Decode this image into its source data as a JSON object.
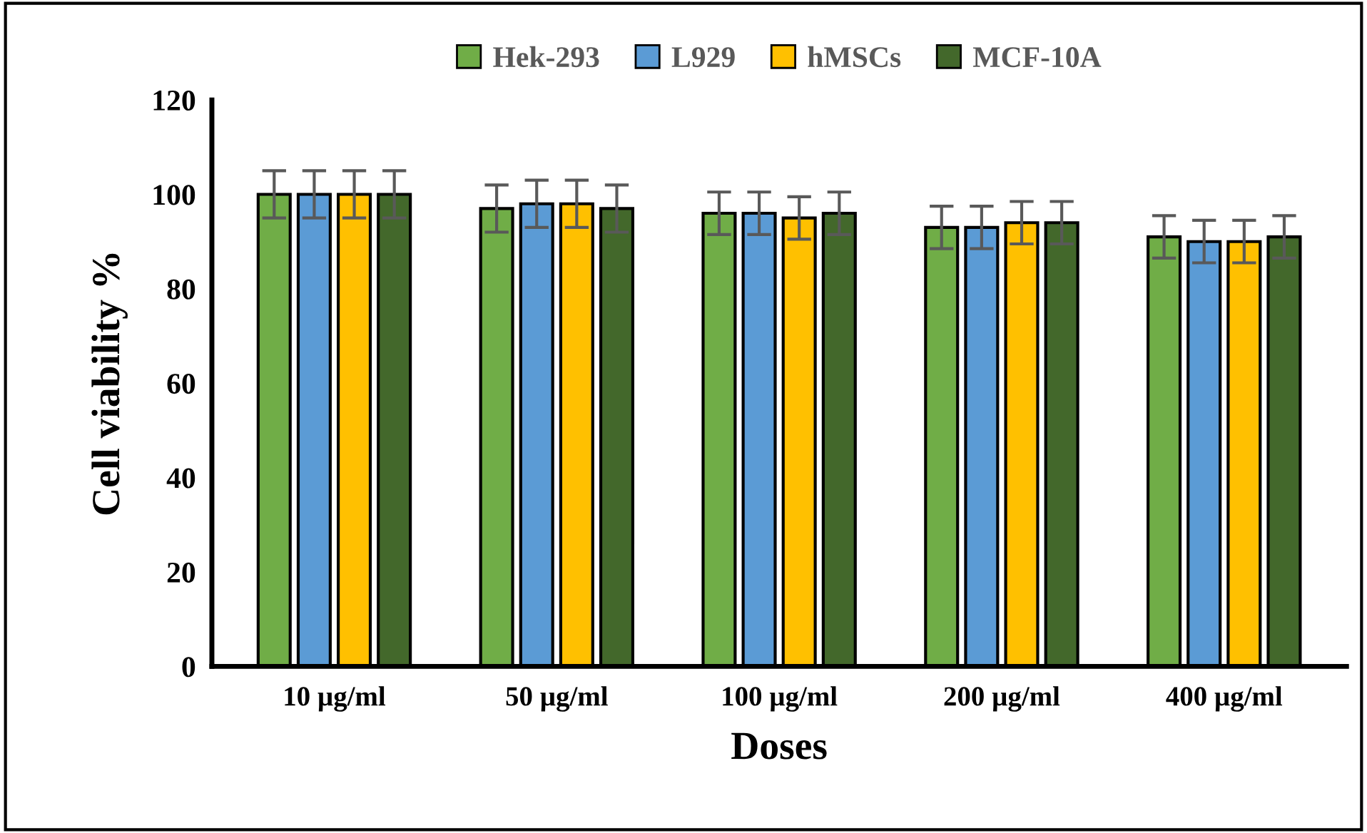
{
  "chart_data": {
    "type": "bar",
    "xlabel": "Doses",
    "ylabel": "Cell viability %",
    "categories": [
      "10 µg/ml",
      "50 µg/ml",
      "100 µg/ml",
      "200 µg/ml",
      "400 µg/ml"
    ],
    "series": [
      {
        "name": "Hek-293",
        "color": "#70ad47",
        "values": [
          100,
          97,
          96,
          93,
          91
        ],
        "errors": [
          5,
          5,
          4.5,
          4.5,
          4.5
        ]
      },
      {
        "name": "L929",
        "color": "#5b9bd5",
        "values": [
          100,
          98,
          96,
          93,
          90
        ],
        "errors": [
          5,
          5,
          4.5,
          4.5,
          4.5
        ]
      },
      {
        "name": "hMSCs",
        "color": "#ffc000",
        "values": [
          100,
          98,
          95,
          94,
          90
        ],
        "errors": [
          5,
          5,
          4.5,
          4.5,
          4.5
        ]
      },
      {
        "name": "MCF-10A",
        "color": "#43682b",
        "values": [
          100,
          97,
          96,
          94,
          91
        ],
        "errors": [
          5,
          5,
          4.5,
          4.5,
          4.5
        ]
      }
    ],
    "ylim": [
      0,
      120
    ],
    "yticks": [
      0,
      20,
      40,
      60,
      80,
      100,
      120
    ],
    "grid": false,
    "legend": "top"
  }
}
